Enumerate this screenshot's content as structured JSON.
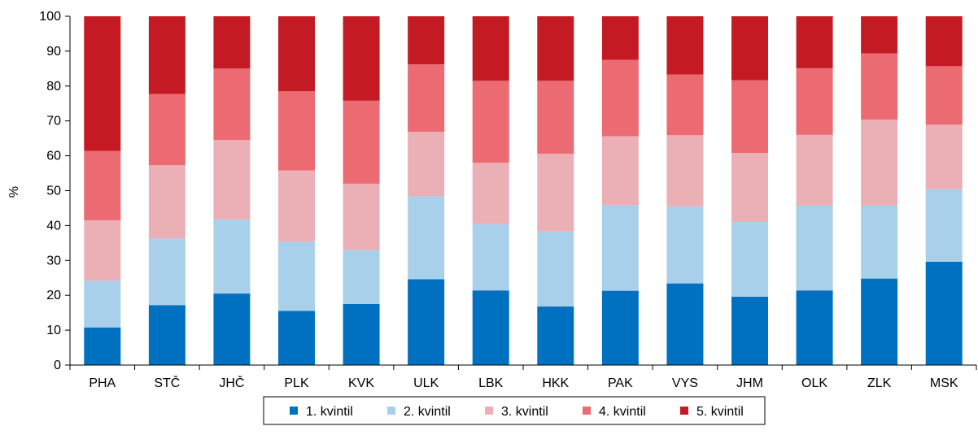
{
  "chart_data": {
    "type": "bar",
    "stacked": true,
    "title": "",
    "xlabel": "",
    "ylabel": "%",
    "ylim": [
      0,
      100
    ],
    "yticks": [
      0,
      10,
      20,
      30,
      40,
      50,
      60,
      70,
      80,
      90,
      100
    ],
    "grid": false,
    "legend_position": "bottom",
    "categories": [
      "PHA",
      "STČ",
      "JHČ",
      "PLK",
      "KVK",
      "ULK",
      "LBK",
      "HKK",
      "PAK",
      "VYS",
      "JHM",
      "OLK",
      "ZLK",
      "MSK"
    ],
    "series": [
      {
        "name": "1. kvintil",
        "color": "#0070c0",
        "values": [
          10.8,
          17.2,
          20.5,
          15.5,
          17.5,
          24.6,
          21.4,
          16.8,
          21.3,
          23.4,
          19.6,
          21.4,
          24.8,
          29.6
        ]
      },
      {
        "name": "2. kvintil",
        "color": "#a9d0ea",
        "values": [
          13.4,
          19.1,
          21.2,
          19.9,
          15.5,
          23.8,
          19.0,
          21.5,
          24.6,
          22.1,
          21.4,
          24.3,
          20.9,
          20.8
        ]
      },
      {
        "name": "3. kvintil",
        "color": "#eab0b5",
        "values": [
          17.3,
          21.0,
          22.8,
          20.4,
          19.0,
          18.5,
          17.6,
          22.3,
          19.7,
          20.4,
          19.8,
          20.3,
          24.7,
          18.5
        ]
      },
      {
        "name": "4. kvintil",
        "color": "#ec6a72",
        "values": [
          19.9,
          20.4,
          20.5,
          22.7,
          23.8,
          19.3,
          23.5,
          20.9,
          21.9,
          17.4,
          20.9,
          19.1,
          19.0,
          16.8
        ]
      },
      {
        "name": "5. kvintil",
        "color": "#c31a24",
        "values": [
          38.6,
          22.3,
          15.0,
          21.5,
          24.2,
          13.8,
          18.5,
          18.5,
          12.5,
          16.7,
          18.3,
          14.9,
          10.6,
          14.3
        ]
      }
    ]
  }
}
